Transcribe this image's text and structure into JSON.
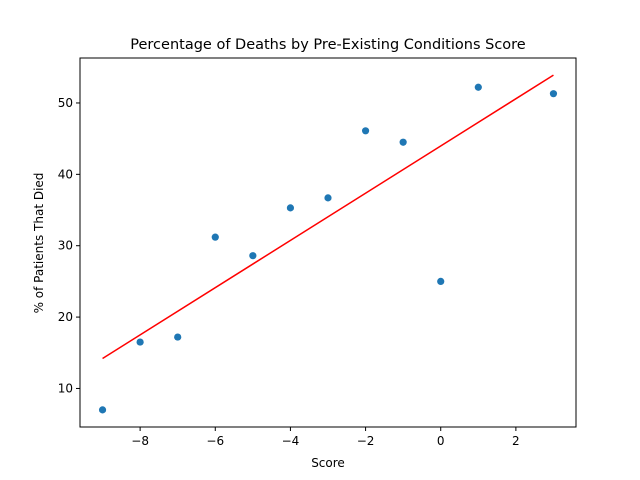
{
  "chart_data": {
    "type": "scatter",
    "title": "Percentage of Deaths by Pre-Existing Conditions Score",
    "xlabel": "Score",
    "ylabel": "% of Patients That Died",
    "xlim": [
      -9.6,
      3.6
    ],
    "ylim": [
      4.6,
      56.3
    ],
    "xticks": [
      -8,
      -6,
      -4,
      -2,
      0,
      2
    ],
    "yticks": [
      10,
      20,
      30,
      40,
      50
    ],
    "grid": false,
    "legend": "none",
    "point_color": "#1f77b4",
    "line_color": "#ff0000",
    "points": [
      {
        "x": -9,
        "y": 7.0
      },
      {
        "x": -8,
        "y": 16.5
      },
      {
        "x": -7,
        "y": 17.2
      },
      {
        "x": -6,
        "y": 31.2
      },
      {
        "x": -5,
        "y": 28.6
      },
      {
        "x": -4,
        "y": 35.3
      },
      {
        "x": -3,
        "y": 36.7
      },
      {
        "x": -2,
        "y": 46.1
      },
      {
        "x": -1,
        "y": 44.5
      },
      {
        "x": 0,
        "y": 25.0
      },
      {
        "x": 1,
        "y": 52.2
      },
      {
        "x": 3,
        "y": 51.3
      }
    ],
    "trend_line": [
      {
        "x": -9,
        "y": 14.2
      },
      {
        "x": 3,
        "y": 53.9
      }
    ]
  }
}
